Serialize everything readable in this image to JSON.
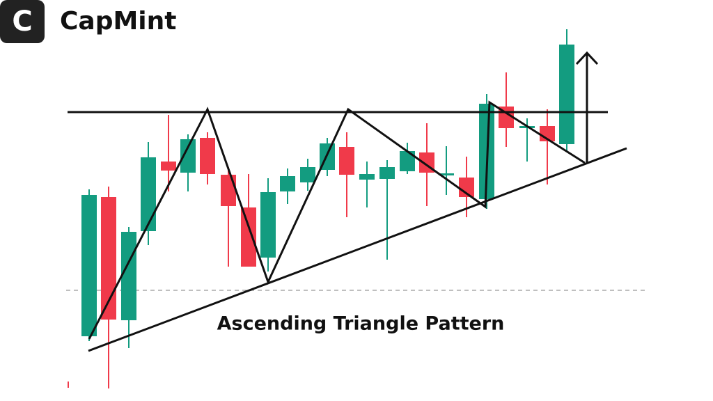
{
  "header": {
    "logo_letter": "C",
    "brand": "CapMint"
  },
  "diagram": {
    "title": "Ascending Triangle Pattern"
  }
}
